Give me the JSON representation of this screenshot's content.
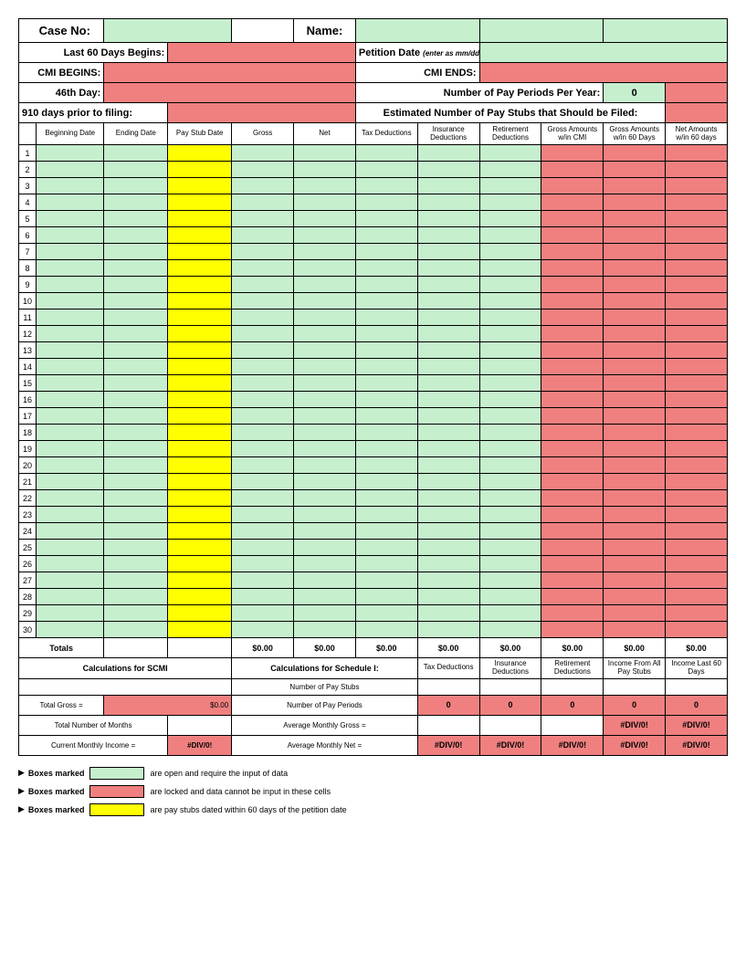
{
  "colors": {
    "green": "#c6efce",
    "red": "#f08080",
    "yellow": "#ffff00",
    "white": "#ffffff",
    "border": "#000000"
  },
  "header": {
    "case_no_label": "Case No:",
    "case_no_value": "",
    "name_label": "Name:",
    "name_value": "",
    "last60_label": "Last 60 Days Begins:",
    "petition_label": "Petition Date",
    "petition_hint": "(enter as mm/dd/yy)",
    "cmi_begins_label": "CMI BEGINS:",
    "cmi_ends_label": "CMI ENDS:",
    "day46_label": "46th Day:",
    "pay_periods_label": "Number of Pay Periods Per Year:",
    "pay_periods_value": "0",
    "days910_label": "910 days prior to filing:",
    "est_stubs_label": "Estimated Number of Pay Stubs that Should be Filed:"
  },
  "columns": [
    "Beginning Date",
    "Ending Date",
    "Pay Stub Date",
    "Gross",
    "Net",
    "Tax Deductions",
    "Insurance Deductions",
    "Retirement Deductions",
    "Gross Amounts w/in CMI",
    "Gross Amounts w/in 60 Days",
    "Net Amounts w/in 60 days"
  ],
  "row_count": 30,
  "totals": {
    "label": "Totals",
    "gross": "$0.00",
    "net": "$0.00",
    "tax": "$0.00",
    "insurance": "$0.00",
    "retirement": "$0.00",
    "cmi": "$0.00",
    "g60": "$0.00",
    "n60": "$0.00"
  },
  "calc_scmi": {
    "title": "Calculations for SCMI",
    "total_gross_label": "Total Gross =",
    "total_gross_value": "$0.00",
    "total_months_label": "Total Number of Months",
    "cmi_label": "Current Monthly Income =",
    "cmi_value": "#DIV/0!"
  },
  "calc_sched": {
    "title": "Calculations for Schedule I:",
    "num_stubs_label": "Number of Pay Stubs",
    "num_periods_label": "Number of Pay Periods",
    "avg_gross_label": "Average Monthly Gross =",
    "avg_net_label": "Average Monthly Net =",
    "col_labels": {
      "tax": "Tax Deductions",
      "insurance": "Insurance Deductions",
      "retirement": "Retirement Deductions",
      "income_all": "Income From All Pay Stubs",
      "income_60": "Income Last 60 Days"
    },
    "periods_row": {
      "tax": "0",
      "insurance": "0",
      "retirement": "0",
      "income_all": "0",
      "income_60": "0"
    },
    "gross_row": {
      "income_all": "#DIV/0!",
      "income_60": "#DIV/0!"
    },
    "net_row": {
      "tax": "#DIV/0!",
      "insurance": "#DIV/0!",
      "retirement": "#DIV/0!",
      "income_all": "#DIV/0!",
      "income_60": "#DIV/0!"
    }
  },
  "legend": {
    "prefix": "Boxes marked",
    "green_text": "are open and require the input of data",
    "red_text": "are locked and data cannot be input in these cells",
    "yellow_text": "are pay stubs dated within 60 days of the petition date"
  }
}
